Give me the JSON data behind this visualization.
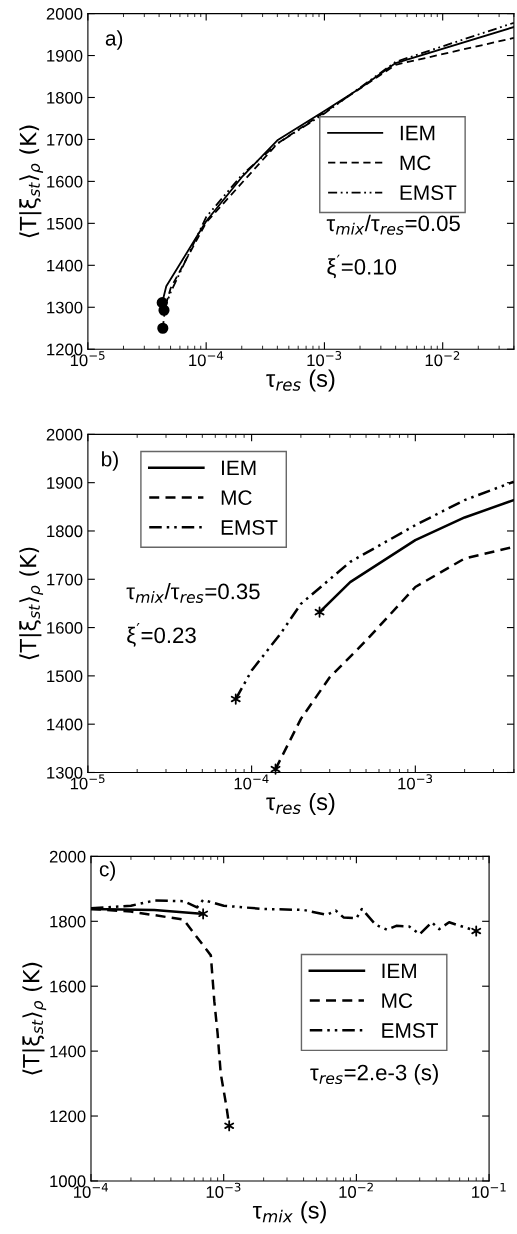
{
  "chart_data": [
    {
      "type": "line",
      "xlabel": "τ$_{res}$ (s)",
      "ylabel": "⟨T|ξ$_{st}$⟩$_{ρ}$ (K)",
      "log": "x",
      "xlim": [
        1e-05,
        0.04
      ],
      "ylim": [
        1200,
        2000
      ],
      "xticks": [
        {
          "value": 1e-05,
          "label": "10$^{−5}$"
        },
        {
          "value": 0.0001,
          "label": "10$^{−4}$"
        },
        {
          "value": 0.001,
          "label": "10$^{−3}$"
        },
        {
          "value": 0.01,
          "label": "10$^{−2}$"
        }
      ],
      "yticks": [
        1200,
        1300,
        1400,
        1500,
        1600,
        1700,
        1800,
        1900,
        2000
      ],
      "grid": false,
      "legend": "center right",
      "annotations": [
        {
          "text": "a)"
        },
        {
          "text": "τ$_{mix}$/τ$_{res}$=0.05"
        },
        {
          "text": "ξ$^{′}$=0.10"
        }
      ],
      "series": [
        {
          "name": "IEM",
          "color": "#000000",
          "line_style": "solid",
          "x": [
            4.25e-05,
            4.6e-05,
            0.0001,
            0.0002,
            0.0004,
            0.001,
            0.002,
            0.004,
            0.04
          ],
          "values": [
            1311,
            1350,
            1505,
            1610,
            1698,
            1768,
            1822,
            1882,
            1968
          ]
        },
        {
          "name": "MC",
          "color": "#000000",
          "line_style": "dashed",
          "x": [
            4.3e-05,
            4.5e-05,
            5e-05,
            0.0001,
            0.0004,
            0.001,
            0.004,
            0.04
          ],
          "values": [
            1250,
            1300,
            1345,
            1502,
            1690,
            1765,
            1878,
            1942
          ]
        },
        {
          "name": "EMST",
          "color": "#000000",
          "line_style": "dashdot",
          "x": [
            4.4e-05,
            5e-05,
            0.0001,
            0.0002,
            0.0004,
            0.001,
            0.004,
            0.04
          ],
          "values": [
            1293,
            1335,
            1515,
            1615,
            1690,
            1762,
            1885,
            1978
          ]
        },
        {
          "type": "scatter",
          "color": "#000000",
          "marker": "circle",
          "x": [
            4.25e-05,
            4.3e-05,
            4.4e-05
          ],
          "values": [
            1311,
            1250,
            1293
          ]
        }
      ]
    },
    {
      "type": "line",
      "xlabel": "τ$_{res}$ (s)",
      "ylabel": "⟨T|ξ$_{st}$⟩$_{ρ}$ (K)",
      "log": "x",
      "xlim": [
        1e-05,
        0.004
      ],
      "ylim": [
        1300,
        2000
      ],
      "xticks": [
        {
          "value": 1e-05,
          "label": "10$^{−5}$"
        },
        {
          "value": 0.0001,
          "label": "10$^{−4}$"
        },
        {
          "value": 0.001,
          "label": "10$^{−3}$"
        }
      ],
      "yticks": [
        1300,
        1400,
        1500,
        1600,
        1700,
        1800,
        1900,
        2000
      ],
      "grid": false,
      "legend": "top left",
      "annotations": [
        {
          "text": "b)"
        },
        {
          "text": "τ$_{mix}$/τ$_{res}$=0.35"
        },
        {
          "text": "ξ$^{′}$=0.23"
        }
      ],
      "series": [
        {
          "name": "IEM",
          "color": "#000000",
          "line_style": "solid",
          "x": [
            0.00026,
            0.0004,
            0.001,
            0.002,
            0.004
          ],
          "values": [
            1632,
            1694,
            1781,
            1828,
            1864
          ]
        },
        {
          "name": "MC",
          "color": "#000000",
          "line_style": "dashed",
          "x": [
            0.00014,
            0.0002,
            0.0003,
            0.0005,
            0.001,
            0.002,
            0.004
          ],
          "values": [
            1307,
            1411,
            1497,
            1573,
            1684,
            1743,
            1767
          ]
        },
        {
          "name": "EMST",
          "color": "#000000",
          "line_style": "dashdot",
          "x": [
            8e-05,
            0.0001,
            0.00015,
            0.0002,
            0.0004,
            0.001,
            0.002,
            0.004
          ],
          "values": [
            1452,
            1511,
            1587,
            1649,
            1736,
            1812,
            1864,
            1902
          ]
        },
        {
          "type": "scatter",
          "color": "#000000",
          "marker": "cross",
          "x": [
            0.00026,
            0.00014,
            8e-05
          ],
          "values": [
            1632,
            1307,
            1452
          ]
        }
      ]
    },
    {
      "type": "line",
      "xlabel": "τ$_{mix}$ (s)",
      "ylabel": "⟨T|ξ$_{st}$⟩$_{ρ}$ (K)",
      "log": "x",
      "xlim": [
        0.0001,
        0.1
      ],
      "ylim": [
        1000,
        2000
      ],
      "xticks": [
        {
          "value": 0.0001,
          "label": "10$^{−4}$"
        },
        {
          "value": 0.001,
          "label": "10$^{−3}$"
        },
        {
          "value": 0.01,
          "label": "10$^{−2}$"
        },
        {
          "value": 0.1,
          "label": "10$^{−1}$"
        }
      ],
      "yticks": [
        1000,
        1200,
        1400,
        1600,
        1800,
        2000
      ],
      "grid": false,
      "legend": "center right",
      "annotations": [
        {
          "text": "c)"
        },
        {
          "text": "τ$_{res}$=2.e-3 (s)"
        }
      ],
      "series": [
        {
          "name": "IEM",
          "color": "#000000",
          "line_style": "solid",
          "x": [
            0.0001,
            0.0003,
            0.0007
          ],
          "values": [
            1838,
            1835,
            1823
          ]
        },
        {
          "name": "MC",
          "color": "#000000",
          "line_style": "dashed",
          "x": [
            0.0001,
            0.0002,
            0.0005,
            0.0006,
            0.0008,
            0.00085,
            0.0009,
            0.00095,
            0.00105,
            0.0011
          ],
          "values": [
            1838,
            1830,
            1805,
            1762,
            1695,
            1553,
            1454,
            1331,
            1228,
            1170
          ]
        },
        {
          "name": "EMST",
          "color": "#000000",
          "line_style": "dashdot",
          "x": [
            0.0001,
            0.0002,
            0.0003,
            0.0005,
            0.00063,
            0.0007,
            0.001,
            0.002,
            0.004,
            0.006,
            0.007,
            0.008,
            0.01,
            0.011,
            0.014,
            0.017,
            0.02,
            0.025,
            0.03,
            0.037,
            0.042,
            0.05,
            0.08
          ],
          "values": [
            1840,
            1848,
            1864,
            1862,
            1843,
            1866,
            1848,
            1838,
            1835,
            1820,
            1833,
            1812,
            1809,
            1838,
            1789,
            1774,
            1786,
            1784,
            1760,
            1797,
            1776,
            1797,
            1770
          ]
        },
        {
          "type": "scatter",
          "color": "#000000",
          "marker": "cross",
          "x": [
            0.0007,
            0.0011,
            0.08
          ],
          "values": [
            1823,
            1170,
            1770
          ]
        }
      ]
    }
  ]
}
